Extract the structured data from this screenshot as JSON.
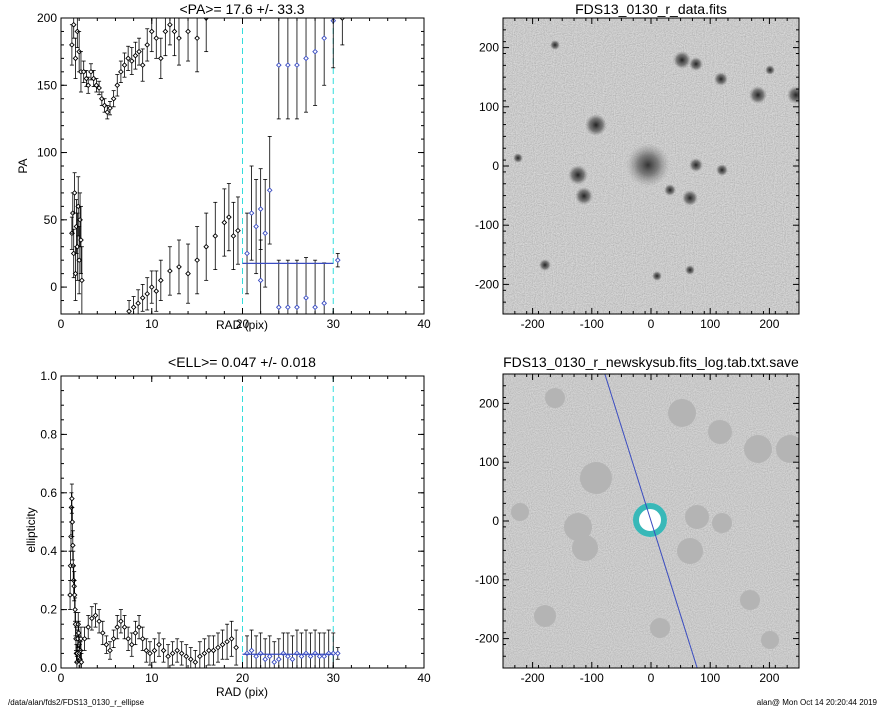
{
  "chart_data": [
    {
      "id": "pa",
      "type": "scatter",
      "title": "<PA>=  17.6 +/-  33.3",
      "xlabel": "RAD (pix)",
      "ylabel": "PA",
      "xlim": [
        0,
        40
      ],
      "ylim": [
        -20,
        200
      ],
      "xticks": [
        "0",
        "10",
        "20",
        "30",
        "40"
      ],
      "yticks": [
        "0",
        "50",
        "100",
        "150",
        "200"
      ],
      "vlines": [
        20,
        30
      ],
      "fit": {
        "x": [
          20,
          30
        ],
        "y": 17.6
      },
      "colors": {
        "points": "#000000",
        "fit": "#3a4cc0",
        "vline": "#33dddd"
      },
      "points": [
        [
          1.2,
          40,
          12
        ],
        [
          1.3,
          55,
          15
        ],
        [
          1.4,
          25,
          18
        ],
        [
          1.5,
          70,
          15
        ],
        [
          1.6,
          10,
          20
        ],
        [
          1.7,
          45,
          20
        ],
        [
          1.8,
          30,
          25
        ],
        [
          1.9,
          60,
          22
        ],
        [
          2.0,
          20,
          25
        ],
        [
          2.1,
          50,
          20
        ],
        [
          2.2,
          35,
          25
        ],
        [
          2.3,
          5,
          25
        ],
        [
          1.2,
          180,
          15
        ],
        [
          1.4,
          195,
          10
        ],
        [
          1.6,
          170,
          15
        ],
        [
          1.8,
          190,
          12
        ],
        [
          2.0,
          175,
          15
        ],
        [
          2.2,
          160,
          15
        ],
        [
          2.5,
          160,
          8
        ],
        [
          2.8,
          155,
          6
        ],
        [
          3.0,
          150,
          6
        ],
        [
          3.3,
          160,
          6
        ],
        [
          3.6,
          155,
          6
        ],
        [
          3.9,
          150,
          5
        ],
        [
          4.2,
          148,
          5
        ],
        [
          4.5,
          140,
          5
        ],
        [
          4.8,
          135,
          5
        ],
        [
          5.1,
          130,
          5
        ],
        [
          5.4,
          133,
          5
        ],
        [
          5.8,
          140,
          6
        ],
        [
          6.2,
          150,
          8
        ],
        [
          6.6,
          160,
          8
        ],
        [
          7.0,
          165,
          9
        ],
        [
          7.4,
          170,
          9
        ],
        [
          7.8,
          168,
          10
        ],
        [
          8.2,
          172,
          10
        ],
        [
          8.6,
          175,
          10
        ],
        [
          9.0,
          165,
          12
        ],
        [
          9.5,
          180,
          12
        ],
        [
          10.0,
          190,
          15
        ],
        [
          10.5,
          185,
          15
        ],
        [
          11.0,
          170,
          15
        ],
        [
          11.5,
          190,
          18
        ],
        [
          12.0,
          195,
          15
        ],
        [
          12.5,
          190,
          18
        ],
        [
          13.0,
          185,
          20
        ],
        [
          14.0,
          190,
          22
        ],
        [
          15.0,
          185,
          25
        ],
        [
          16.0,
          200,
          25
        ],
        [
          7.5,
          -18,
          8
        ],
        [
          8.0,
          -15,
          8
        ],
        [
          8.5,
          -12,
          10
        ],
        [
          9.0,
          -8,
          10
        ],
        [
          9.5,
          -5,
          12
        ],
        [
          10.0,
          0,
          12
        ],
        [
          10.5,
          -3,
          15
        ],
        [
          11.0,
          5,
          15
        ],
        [
          12.0,
          12,
          18
        ],
        [
          13.0,
          15,
          20
        ],
        [
          14.0,
          10,
          22
        ],
        [
          15.0,
          20,
          25
        ],
        [
          16.0,
          30,
          25
        ],
        [
          17.0,
          38,
          25
        ],
        [
          18.0,
          48,
          25
        ],
        [
          18.5,
          52,
          25
        ],
        [
          19.0,
          38,
          25
        ],
        [
          19.5,
          42,
          25
        ],
        [
          20.5,
          25,
          30
        ],
        [
          21.0,
          55,
          35
        ],
        [
          21.5,
          45,
          35
        ],
        [
          22.0,
          58,
          30
        ],
        [
          22.5,
          40,
          40
        ],
        [
          23.0,
          72,
          40
        ],
        [
          22.0,
          5,
          30
        ],
        [
          24.0,
          -15,
          35
        ],
        [
          25.0,
          -15,
          35
        ],
        [
          26.0,
          -15,
          35
        ],
        [
          27.0,
          -8,
          30
        ],
        [
          28.0,
          -15,
          35
        ],
        [
          29.0,
          -12,
          30
        ],
        [
          24.0,
          165,
          40
        ],
        [
          25.0,
          165,
          40
        ],
        [
          26.0,
          165,
          40
        ],
        [
          27.0,
          170,
          40
        ],
        [
          28.0,
          175,
          40
        ],
        [
          29.0,
          185,
          35
        ],
        [
          30.0,
          198,
          35
        ],
        [
          31.0,
          200,
          20
        ],
        [
          30.5,
          20,
          5
        ]
      ]
    },
    {
      "id": "ell",
      "type": "scatter",
      "title": "<ELL>= 0.047 +/-  0.018",
      "xlabel": "RAD (pix)",
      "ylabel": "ellipticity",
      "xlim": [
        0,
        40
      ],
      "ylim": [
        0,
        1
      ],
      "xticks": [
        "0",
        "10",
        "20",
        "30",
        "40"
      ],
      "yticks": [
        "0.0",
        "0.2",
        "0.4",
        "0.6",
        "0.8",
        "1.0"
      ],
      "vlines": [
        20,
        30
      ],
      "fit": {
        "x": [
          20,
          30
        ],
        "y": 0.047
      },
      "colors": {
        "points": "#000000",
        "fit": "#3a4cc0",
        "vline": "#33dddd"
      },
      "points": [
        [
          1.0,
          0.25,
          0.05
        ],
        [
          1.05,
          0.35,
          0.05
        ],
        [
          1.1,
          0.45,
          0.05
        ],
        [
          1.15,
          0.55,
          0.05
        ],
        [
          1.2,
          0.58,
          0.05
        ],
        [
          1.25,
          0.5,
          0.05
        ],
        [
          1.3,
          0.42,
          0.05
        ],
        [
          1.35,
          0.35,
          0.05
        ],
        [
          1.4,
          0.3,
          0.05
        ],
        [
          1.45,
          0.28,
          0.05
        ],
        [
          1.5,
          0.25,
          0.05
        ],
        [
          1.55,
          0.2,
          0.04
        ],
        [
          1.6,
          0.15,
          0.04
        ],
        [
          1.65,
          0.1,
          0.04
        ],
        [
          1.7,
          0.05,
          0.03
        ],
        [
          1.75,
          0.02,
          0.02
        ],
        [
          1.8,
          0.05,
          0.03
        ],
        [
          1.85,
          0.1,
          0.03
        ],
        [
          1.9,
          0.15,
          0.04
        ],
        [
          1.95,
          0.12,
          0.04
        ],
        [
          2.0,
          0.08,
          0.03
        ],
        [
          2.05,
          0.05,
          0.03
        ],
        [
          2.1,
          0.03,
          0.03
        ],
        [
          2.15,
          0.06,
          0.03
        ],
        [
          2.2,
          0.1,
          0.04
        ],
        [
          2.25,
          0.02,
          0.03
        ],
        [
          2.6,
          0.1,
          0.04
        ],
        [
          3.0,
          0.14,
          0.04
        ],
        [
          3.4,
          0.17,
          0.04
        ],
        [
          3.8,
          0.18,
          0.04
        ],
        [
          4.2,
          0.16,
          0.04
        ],
        [
          4.6,
          0.12,
          0.04
        ],
        [
          5.0,
          0.08,
          0.03
        ],
        [
          5.4,
          0.06,
          0.03
        ],
        [
          5.8,
          0.1,
          0.03
        ],
        [
          6.2,
          0.14,
          0.04
        ],
        [
          6.6,
          0.16,
          0.04
        ],
        [
          7.0,
          0.14,
          0.04
        ],
        [
          7.4,
          0.1,
          0.04
        ],
        [
          7.8,
          0.08,
          0.04
        ],
        [
          8.2,
          0.12,
          0.04
        ],
        [
          8.6,
          0.14,
          0.04
        ],
        [
          9.0,
          0.1,
          0.04
        ],
        [
          9.4,
          0.06,
          0.04
        ],
        [
          9.8,
          0.05,
          0.04
        ],
        [
          10.3,
          0.06,
          0.04
        ],
        [
          10.8,
          0.08,
          0.04
        ],
        [
          11.3,
          0.06,
          0.04
        ],
        [
          11.8,
          0.04,
          0.04
        ],
        [
          12.3,
          0.05,
          0.04
        ],
        [
          12.8,
          0.06,
          0.04
        ],
        [
          13.3,
          0.05,
          0.04
        ],
        [
          13.8,
          0.04,
          0.04
        ],
        [
          14.3,
          0.03,
          0.04
        ],
        [
          14.8,
          0.02,
          0.04
        ],
        [
          15.3,
          0.04,
          0.05
        ],
        [
          15.8,
          0.05,
          0.05
        ],
        [
          16.3,
          0.06,
          0.05
        ],
        [
          16.8,
          0.06,
          0.05
        ],
        [
          17.3,
          0.07,
          0.05
        ],
        [
          17.8,
          0.08,
          0.05
        ],
        [
          18.3,
          0.09,
          0.06
        ],
        [
          18.8,
          0.1,
          0.06
        ],
        [
          19.3,
          0.07,
          0.06
        ],
        [
          20.5,
          0.05,
          0.06
        ],
        [
          21.0,
          0.06,
          0.07
        ],
        [
          21.5,
          0.04,
          0.07
        ],
        [
          22.0,
          0.05,
          0.07
        ],
        [
          22.5,
          0.03,
          0.07
        ],
        [
          23.0,
          0.04,
          0.07
        ],
        [
          23.5,
          0.02,
          0.07
        ],
        [
          24.0,
          0.03,
          0.07
        ],
        [
          24.5,
          0.05,
          0.07
        ],
        [
          25.0,
          0.04,
          0.08
        ],
        [
          25.5,
          0.03,
          0.08
        ],
        [
          26.0,
          0.05,
          0.08
        ],
        [
          26.5,
          0.04,
          0.08
        ],
        [
          27.0,
          0.05,
          0.08
        ],
        [
          27.5,
          0.04,
          0.08
        ],
        [
          28.0,
          0.05,
          0.08
        ],
        [
          28.5,
          0.04,
          0.08
        ],
        [
          29.0,
          0.04,
          0.08
        ],
        [
          29.5,
          0.05,
          0.08
        ],
        [
          30.0,
          0.05,
          0.07
        ],
        [
          30.5,
          0.05,
          0.02
        ]
      ]
    },
    {
      "id": "img1",
      "type": "heatmap",
      "title": "FDS13_0130_r_data.fits",
      "xlim": [
        -250,
        250
      ],
      "ylim": [
        -250,
        250
      ],
      "xticks": [
        "-200",
        "-100",
        "0",
        "100",
        "200"
      ],
      "yticks": [
        "-200",
        "-100",
        "0",
        "100",
        "200"
      ]
    },
    {
      "id": "img2",
      "type": "heatmap",
      "title": "FDS13_0130_r_newskysub.fits_log.tab.txt.save",
      "xlim": [
        -250,
        250
      ],
      "ylim": [
        -250,
        250
      ],
      "xticks": [
        "-200",
        "-100",
        "0",
        "100",
        "200"
      ],
      "yticks": [
        "-200",
        "-100",
        "0",
        "100",
        "200"
      ],
      "line": {
        "x": [
          -78,
          78
        ],
        "y": [
          250,
          -250
        ]
      },
      "colors": {
        "ring": "#38b8b8",
        "line": "#3a4cc0"
      }
    }
  ],
  "footer": {
    "left": "/data/alan/fds2/FDS13_0130_r_ellipse",
    "right": "alan@  Mon Oct 14 20:20:44 2019"
  }
}
